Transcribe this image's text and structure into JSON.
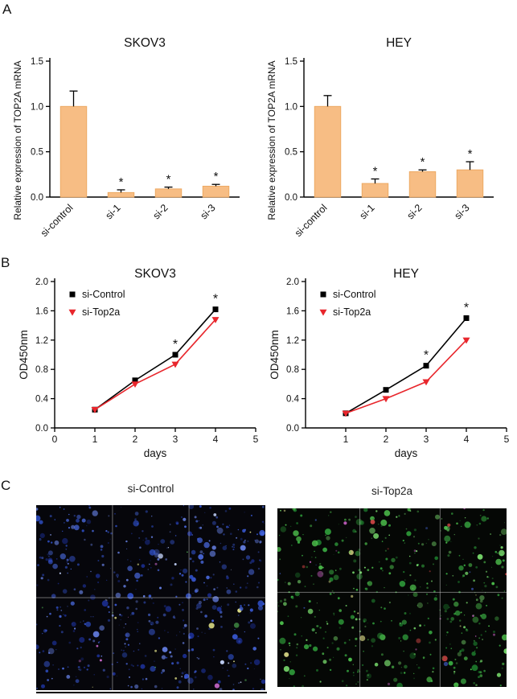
{
  "panels": {
    "a": {
      "label": "A"
    },
    "b": {
      "label": "B"
    },
    "c": {
      "label": "C",
      "images": [
        {
          "title": "si-Control",
          "background": "#06060b",
          "main_colors": [
            "#2e4ec4",
            "#4a6ae0",
            "#1c2f92",
            "#6b86ee",
            "#3857d0"
          ],
          "accent_colors": [
            "#cf6bd0",
            "#e6e68a",
            "#57c05a",
            "#c8d8ff"
          ]
        },
        {
          "title": "si-Top2a",
          "background": "#050705",
          "main_colors": [
            "#2f9c3a",
            "#4fc44e",
            "#1d7a2c",
            "#7ade6e",
            "#3bb044"
          ],
          "accent_colors": [
            "#c75fc2",
            "#d04545",
            "#e0e08a",
            "#3b57b8"
          ]
        }
      ]
    }
  },
  "chart_data": [
    {
      "type": "bar",
      "panel": "A",
      "title": "SKOV3",
      "ylabel": "Relative expression of TOP2A mRNA",
      "categories": [
        "si-control",
        "si-1",
        "si-2",
        "si-3"
      ],
      "values": [
        1.0,
        0.05,
        0.09,
        0.12
      ],
      "errors": [
        0.17,
        0.03,
        0.02,
        0.02
      ],
      "annotations": [
        "",
        "*",
        "*",
        "*"
      ],
      "ylim": [
        0,
        1.5
      ],
      "yticks": [
        0.0,
        0.5,
        1.0,
        1.5
      ],
      "bar_color": "#f7bd84",
      "bar_edge": "#eda963"
    },
    {
      "type": "bar",
      "panel": "A",
      "title": "HEY",
      "ylabel": "Relative expression of TOP2A mRNA",
      "categories": [
        "si-control",
        "si-1",
        "si-2",
        "si-3"
      ],
      "values": [
        1.0,
        0.15,
        0.28,
        0.3
      ],
      "errors": [
        0.12,
        0.05,
        0.02,
        0.09
      ],
      "annotations": [
        "",
        "*",
        "*",
        "*"
      ],
      "ylim": [
        0,
        1.5
      ],
      "yticks": [
        0.0,
        0.5,
        1.0,
        1.5
      ],
      "bar_color": "#f7bd84",
      "bar_edge": "#eda963"
    },
    {
      "type": "line",
      "panel": "B",
      "title": "SKOV3",
      "xlabel": "days",
      "ylabel": "OD450nm",
      "x": [
        1,
        2,
        3,
        4
      ],
      "xlim": [
        0,
        5
      ],
      "xticks": [
        0,
        1,
        2,
        3,
        4,
        5
      ],
      "ylim": [
        0,
        2.0
      ],
      "yticks": [
        0.0,
        0.4,
        0.8,
        1.2,
        1.6,
        2.0
      ],
      "series": [
        {
          "name": "si-Control",
          "color": "#000000",
          "marker": "square",
          "values": [
            0.25,
            0.65,
            1.0,
            1.62
          ]
        },
        {
          "name": "si-Top2a",
          "color": "#e8262c",
          "marker": "triangle-down",
          "values": [
            0.25,
            0.6,
            0.87,
            1.48
          ]
        }
      ],
      "sig_days": [
        3,
        4
      ],
      "legend_position": "top-left"
    },
    {
      "type": "line",
      "panel": "B",
      "title": "HEY",
      "xlabel": "days",
      "ylabel": "OD450nm",
      "x": [
        1,
        2,
        3,
        4
      ],
      "xlim": [
        0,
        5
      ],
      "xticks": [
        1,
        2,
        3,
        4,
        5
      ],
      "ylim": [
        0,
        2.0
      ],
      "yticks": [
        0.0,
        0.4,
        0.8,
        1.2,
        1.6,
        2.0
      ],
      "series": [
        {
          "name": "si-Control",
          "color": "#000000",
          "marker": "square",
          "values": [
            0.2,
            0.52,
            0.85,
            1.5
          ]
        },
        {
          "name": "si-Top2a",
          "color": "#e8262c",
          "marker": "triangle-down",
          "values": [
            0.2,
            0.4,
            0.63,
            1.2
          ]
        }
      ],
      "sig_days": [
        3,
        4
      ],
      "legend_position": "top-left"
    }
  ]
}
